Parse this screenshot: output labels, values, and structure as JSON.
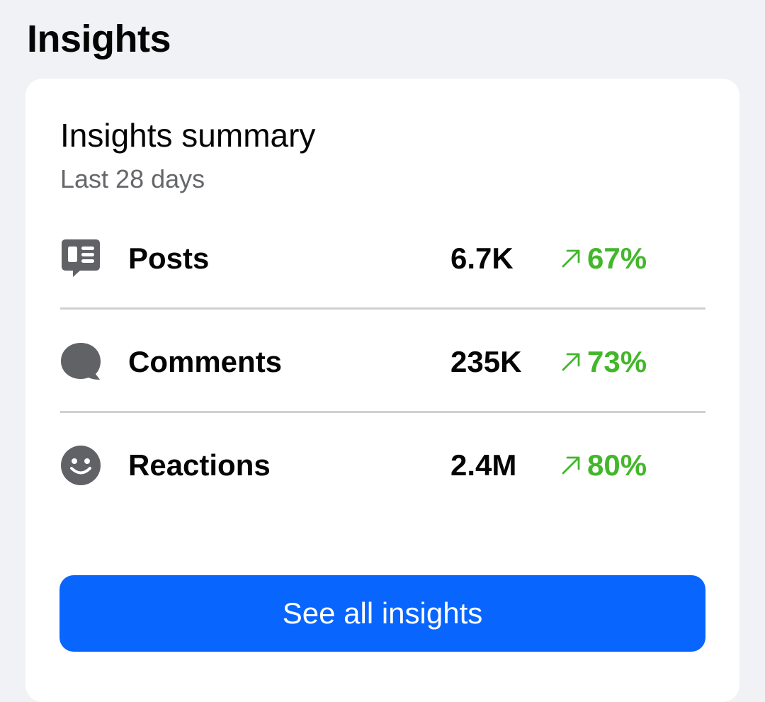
{
  "header": {
    "title": "Insights"
  },
  "card": {
    "title": "Insights summary",
    "subtitle": "Last 28 days",
    "metrics": [
      {
        "label": "Posts",
        "value": "6.7K",
        "change": "67%",
        "icon": "post-icon",
        "trend": "up"
      },
      {
        "label": "Comments",
        "value": "235K",
        "change": "73%",
        "icon": "comment-bubble-icon",
        "trend": "up"
      },
      {
        "label": "Reactions",
        "value": "2.4M",
        "change": "80%",
        "icon": "smiley-face-icon",
        "trend": "up"
      }
    ],
    "button_label": "See all insights"
  },
  "colors": {
    "background": "#f0f2f5",
    "card": "#ffffff",
    "primary_button": "#0866ff",
    "positive_change": "#42b72a",
    "icon_gray": "#606266",
    "divider": "#ced0d4"
  }
}
